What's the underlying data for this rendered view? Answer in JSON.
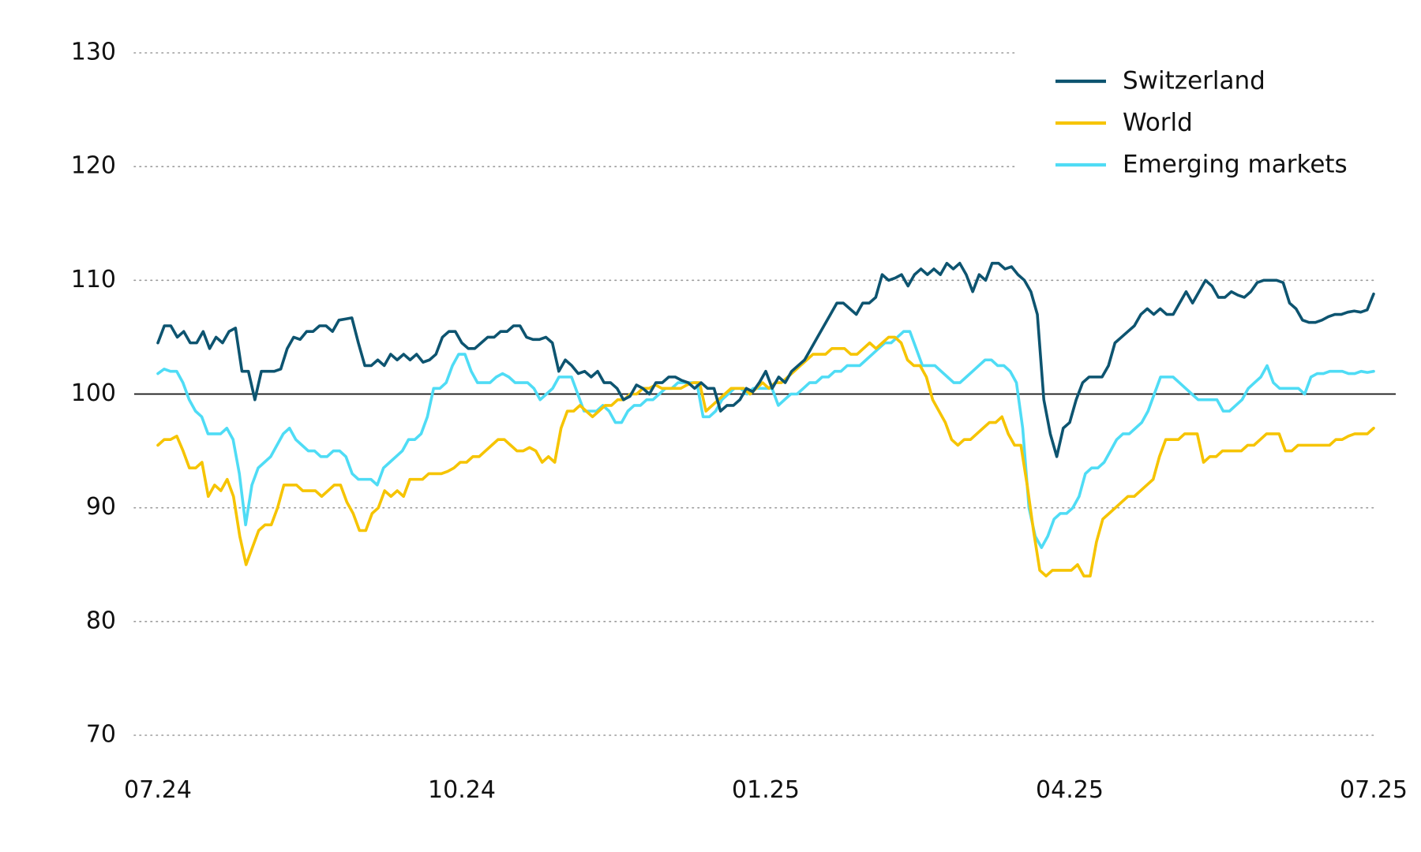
{
  "chart_data": {
    "type": "line",
    "title": "",
    "xlabel": "",
    "ylabel": "",
    "x_ticks": [
      "07.24",
      "10.24",
      "01.25",
      "04.25",
      "07.25"
    ],
    "x_range": [
      "07.24",
      "07.25"
    ],
    "y_ticks": [
      70,
      80,
      90,
      100,
      110,
      120,
      130
    ],
    "ylim": [
      70,
      130
    ],
    "reference_line": 100,
    "grid": "dotted horizontal",
    "legend_position": "top-right",
    "series": [
      {
        "name": "Switzerland",
        "color": "#0d5470",
        "values": [
          104.5,
          106.0,
          106.0,
          105.0,
          105.5,
          104.5,
          104.5,
          105.5,
          104.0,
          105.0,
          104.5,
          105.5,
          105.8,
          102.0,
          102.0,
          99.5,
          102.0,
          102.0,
          102.0,
          102.2,
          104.0,
          105.0,
          104.8,
          105.5,
          105.5,
          106.0,
          106.0,
          105.5,
          106.5,
          106.6,
          106.7,
          104.5,
          102.5,
          102.5,
          103.0,
          102.5,
          103.5,
          103.0,
          103.5,
          103.0,
          103.5,
          102.8,
          103.0,
          103.5,
          105.0,
          105.5,
          105.5,
          104.5,
          104.0,
          104.0,
          104.5,
          105.0,
          105.0,
          105.5,
          105.5,
          106.0,
          106.0,
          105.0,
          104.8,
          104.8,
          105.0,
          104.5,
          102.0,
          103.0,
          102.5,
          101.8,
          102.0,
          101.5,
          102.0,
          101.0,
          101.0,
          100.5,
          99.5,
          99.8,
          100.8,
          100.5,
          100.0,
          101.0,
          101.0,
          101.5,
          101.5,
          101.2,
          101.0,
          100.5,
          101.0,
          100.5,
          100.5,
          98.5,
          99.0,
          99.0,
          99.5,
          100.5,
          100.2,
          101.0,
          102.0,
          100.5,
          101.5,
          101.0,
          102.0,
          102.5,
          103.0,
          104.0,
          105.0,
          106.0,
          107.0,
          108.0,
          108.0,
          107.5,
          107.0,
          108.0,
          108.0,
          108.5,
          110.5,
          110.0,
          110.2,
          110.5,
          109.5,
          110.5,
          111.0,
          110.5,
          111.0,
          110.5,
          111.5,
          111.0,
          111.5,
          110.5,
          109.0,
          110.5,
          110.0,
          111.5,
          111.5,
          111.0,
          111.2,
          110.5,
          110.0,
          109.0,
          107.0,
          99.5,
          96.5,
          94.5,
          97.0,
          97.5,
          99.5,
          101.0,
          101.5,
          101.5,
          101.5,
          102.5,
          104.5,
          105.0,
          105.5,
          106.0,
          107.0,
          107.5,
          107.0,
          107.5,
          107.0,
          107.0,
          108.0,
          109.0,
          108.0,
          109.0,
          110.0,
          109.5,
          108.5,
          108.5,
          109.0,
          108.7,
          108.5,
          109.0,
          109.8,
          110.0,
          110.0,
          110.0,
          109.8,
          108.0,
          107.5,
          106.5,
          106.3,
          106.3,
          106.5,
          106.8,
          107.0,
          107.0,
          107.2,
          107.3,
          107.2,
          107.4,
          108.8
        ]
      },
      {
        "name": "World",
        "color": "#f6c400",
        "values": [
          95.5,
          96.0,
          96.0,
          96.3,
          95.0,
          93.5,
          93.5,
          94.0,
          91.0,
          92.0,
          91.5,
          92.5,
          91.0,
          87.5,
          85.0,
          86.5,
          88.0,
          88.5,
          88.5,
          90.0,
          92.0,
          92.0,
          92.0,
          91.5,
          91.5,
          91.5,
          91.0,
          91.5,
          92.0,
          92.0,
          90.5,
          89.5,
          88.0,
          88.0,
          89.5,
          90.0,
          91.5,
          91.0,
          91.5,
          91.0,
          92.5,
          92.5,
          92.5,
          93.0,
          93.0,
          93.0,
          93.2,
          93.5,
          94.0,
          94.0,
          94.5,
          94.5,
          95.0,
          95.5,
          96.0,
          96.0,
          95.5,
          95.0,
          95.0,
          95.3,
          95.0,
          94.0,
          94.5,
          94.0,
          97.0,
          98.5,
          98.5,
          99.0,
          98.5,
          98.0,
          98.5,
          99.0,
          99.0,
          99.5,
          99.5,
          100.0,
          100.0,
          100.5,
          100.5,
          100.8,
          100.5,
          100.5,
          100.5,
          100.5,
          100.8,
          101.0,
          101.0,
          98.5,
          99.0,
          99.5,
          100.0,
          100.5,
          100.5,
          100.5,
          100.0,
          100.5,
          101.0,
          100.5,
          101.0,
          101.0,
          101.5,
          102.0,
          102.5,
          103.0,
          103.5,
          103.5,
          103.5,
          104.0,
          104.0,
          104.0,
          103.5,
          103.5,
          104.0,
          104.5,
          104.0,
          104.5,
          105.0,
          105.0,
          104.5,
          103.0,
          102.5,
          102.5,
          101.5,
          99.5,
          98.5,
          97.5,
          96.0,
          95.5,
          96.0,
          96.0,
          96.5,
          97.0,
          97.5,
          97.5,
          98.0,
          96.5,
          95.5,
          95.5,
          92.0,
          88.0,
          84.5,
          84.0,
          84.5,
          84.5,
          84.5,
          84.5,
          85.0,
          84.0,
          84.0,
          87.0,
          89.0,
          89.5,
          90.0,
          90.5,
          91.0,
          91.0,
          91.5,
          92.0,
          92.5,
          94.5,
          96.0,
          96.0,
          96.0,
          96.5,
          96.5,
          96.5,
          94.0,
          94.5,
          94.5,
          95.0,
          95.0,
          95.0,
          95.0,
          95.5,
          95.5,
          96.0,
          96.5,
          96.5,
          96.5,
          95.0,
          95.0,
          95.5,
          95.5,
          95.5,
          95.5,
          95.5,
          95.5,
          96.0,
          96.0,
          96.3,
          96.5,
          96.5,
          96.5,
          97.0
        ]
      },
      {
        "name": "Emerging markets",
        "color": "#4fdcf5",
        "values": [
          101.8,
          102.2,
          102.0,
          102.0,
          101.0,
          99.5,
          98.5,
          98.0,
          96.5,
          96.5,
          96.5,
          97.0,
          96.0,
          93.0,
          88.5,
          92.0,
          93.5,
          94.0,
          94.5,
          95.5,
          96.5,
          97.0,
          96.0,
          95.5,
          95.0,
          95.0,
          94.5,
          94.5,
          95.0,
          95.0,
          94.5,
          93.0,
          92.5,
          92.5,
          92.5,
          92.0,
          93.5,
          94.0,
          94.5,
          95.0,
          96.0,
          96.0,
          96.5,
          98.0,
          100.5,
          100.5,
          101.0,
          102.5,
          103.5,
          103.5,
          102.0,
          101.0,
          101.0,
          101.0,
          101.5,
          101.8,
          101.5,
          101.0,
          101.0,
          101.0,
          100.5,
          99.5,
          100.0,
          100.5,
          101.5,
          101.5,
          101.5,
          100.0,
          98.5,
          98.5,
          98.5,
          99.0,
          98.5,
          97.5,
          97.5,
          98.5,
          99.0,
          99.0,
          99.5,
          99.5,
          100.0,
          100.5,
          100.5,
          101.0,
          101.0,
          101.0,
          101.0,
          98.0,
          98.0,
          98.5,
          99.5,
          100.0,
          100.5,
          100.5,
          100.0,
          100.5,
          100.5,
          100.5,
          100.5,
          99.0,
          99.5,
          100.0,
          100.0,
          100.5,
          101.0,
          101.0,
          101.5,
          101.5,
          102.0,
          102.0,
          102.5,
          102.5,
          102.5,
          103.0,
          103.5,
          104.0,
          104.5,
          104.5,
          105.0,
          105.5,
          105.5,
          104.0,
          102.5,
          102.5,
          102.5,
          102.0,
          101.5,
          101.0,
          101.0,
          101.5,
          102.0,
          102.5,
          103.0,
          103.0,
          102.5,
          102.5,
          102.0,
          101.0,
          97.0,
          90.0,
          87.5,
          86.5,
          87.5,
          89.0,
          89.5,
          89.5,
          90.0,
          91.0,
          93.0,
          93.5,
          93.5,
          94.0,
          95.0,
          96.0,
          96.5,
          96.5,
          97.0,
          97.5,
          98.5,
          100.0,
          101.5,
          101.5,
          101.5,
          101.0,
          100.5,
          100.0,
          99.5,
          99.5,
          99.5,
          99.5,
          98.5,
          98.5,
          99.0,
          99.5,
          100.5,
          101.0,
          101.5,
          102.5,
          101.0,
          100.5,
          100.5,
          100.5,
          100.5,
          100.0,
          101.5,
          101.8,
          101.8,
          102.0,
          102.0,
          102.0,
          101.8,
          101.8,
          102.0,
          101.9,
          102.0
        ]
      }
    ]
  }
}
